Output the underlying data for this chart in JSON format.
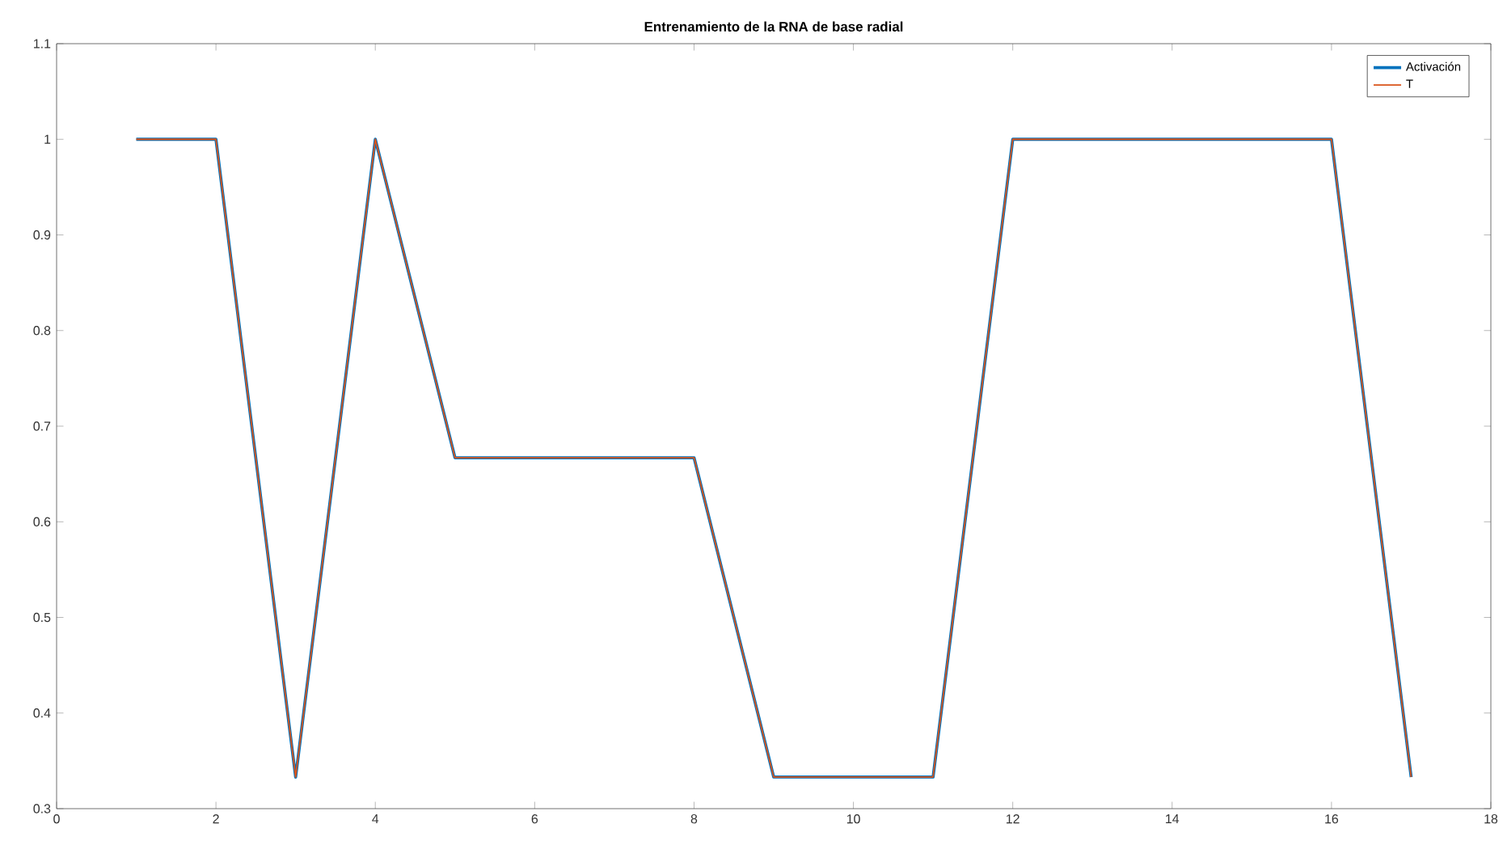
{
  "chart_data": {
    "type": "line",
    "title": "Entrenamiento de la RNA de base radial",
    "x": [
      1,
      2,
      3,
      4,
      5,
      6,
      7,
      8,
      9,
      10,
      11,
      12,
      13,
      14,
      15,
      16,
      17
    ],
    "series": [
      {
        "name": "Activación",
        "color": "#0072bd",
        "values": [
          1,
          1,
          0.333,
          1,
          0.667,
          0.667,
          0.667,
          0.667,
          0.333,
          0.333,
          0.333,
          1,
          1,
          1,
          1,
          1,
          0.333
        ]
      },
      {
        "name": "T",
        "color": "#d95319",
        "values": [
          1,
          1,
          0.333,
          1,
          0.667,
          0.667,
          0.667,
          0.667,
          0.333,
          0.333,
          0.333,
          1,
          1,
          1,
          1,
          1,
          0.333
        ]
      }
    ],
    "xlim": [
      0,
      18
    ],
    "ylim": [
      0.3,
      1.1
    ],
    "xticks": [
      0,
      2,
      4,
      6,
      8,
      10,
      12,
      14,
      16,
      18
    ],
    "yticks": [
      0.3,
      0.4,
      0.5,
      0.6,
      0.7,
      0.8,
      0.9,
      1,
      1.1
    ],
    "grid": false,
    "legend": "top right",
    "line_style": "solid"
  }
}
